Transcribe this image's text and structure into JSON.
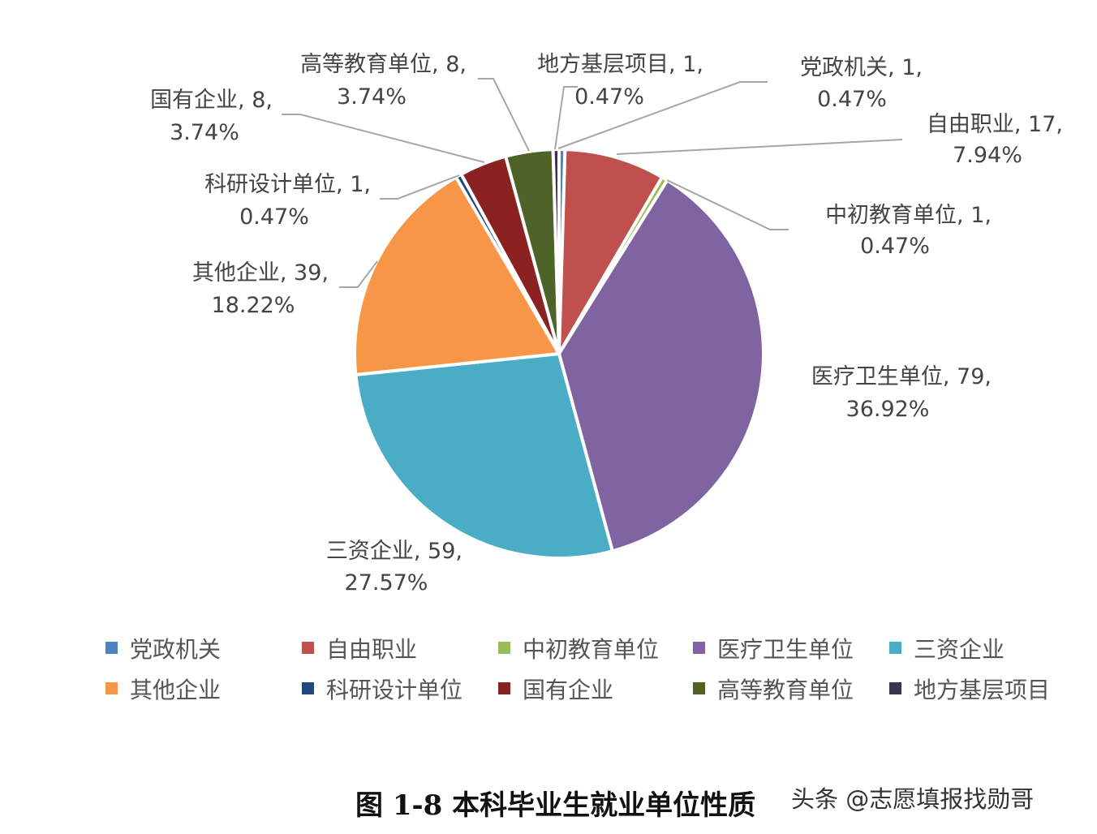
{
  "chart_data": {
    "type": "pie",
    "title": "图 1-8 本科毕业生就业单位性质",
    "series": [
      {
        "name": "党政机关",
        "value": 1,
        "percent": "0.47%",
        "color": "#4f81bd"
      },
      {
        "name": "自由职业",
        "value": 17,
        "percent": "7.94%",
        "color": "#c0504d"
      },
      {
        "name": "中初教育单位",
        "value": 1,
        "percent": "0.47%",
        "color": "#9bbb59"
      },
      {
        "name": "医疗卫生单位",
        "value": 79,
        "percent": "36.92%",
        "color": "#8064a2"
      },
      {
        "name": "三资企业",
        "value": 59,
        "percent": "27.57%",
        "color": "#4bacc6"
      },
      {
        "name": "其他企业",
        "value": 39,
        "percent": "18.22%",
        "color": "#f79646"
      },
      {
        "name": "科研设计单位",
        "value": 1,
        "percent": "0.47%",
        "color": "#1f497d"
      },
      {
        "name": "国有企业",
        "value": 8,
        "percent": "3.74%",
        "color": "#8b2222"
      },
      {
        "name": "高等教育单位",
        "value": 8,
        "percent": "3.74%",
        "color": "#4f6228"
      },
      {
        "name": "地方基层项目",
        "value": 1,
        "percent": "0.47%",
        "color": "#403151"
      }
    ],
    "legend_position": "bottom"
  },
  "watermark": "头条 @志愿填报找勋哥"
}
